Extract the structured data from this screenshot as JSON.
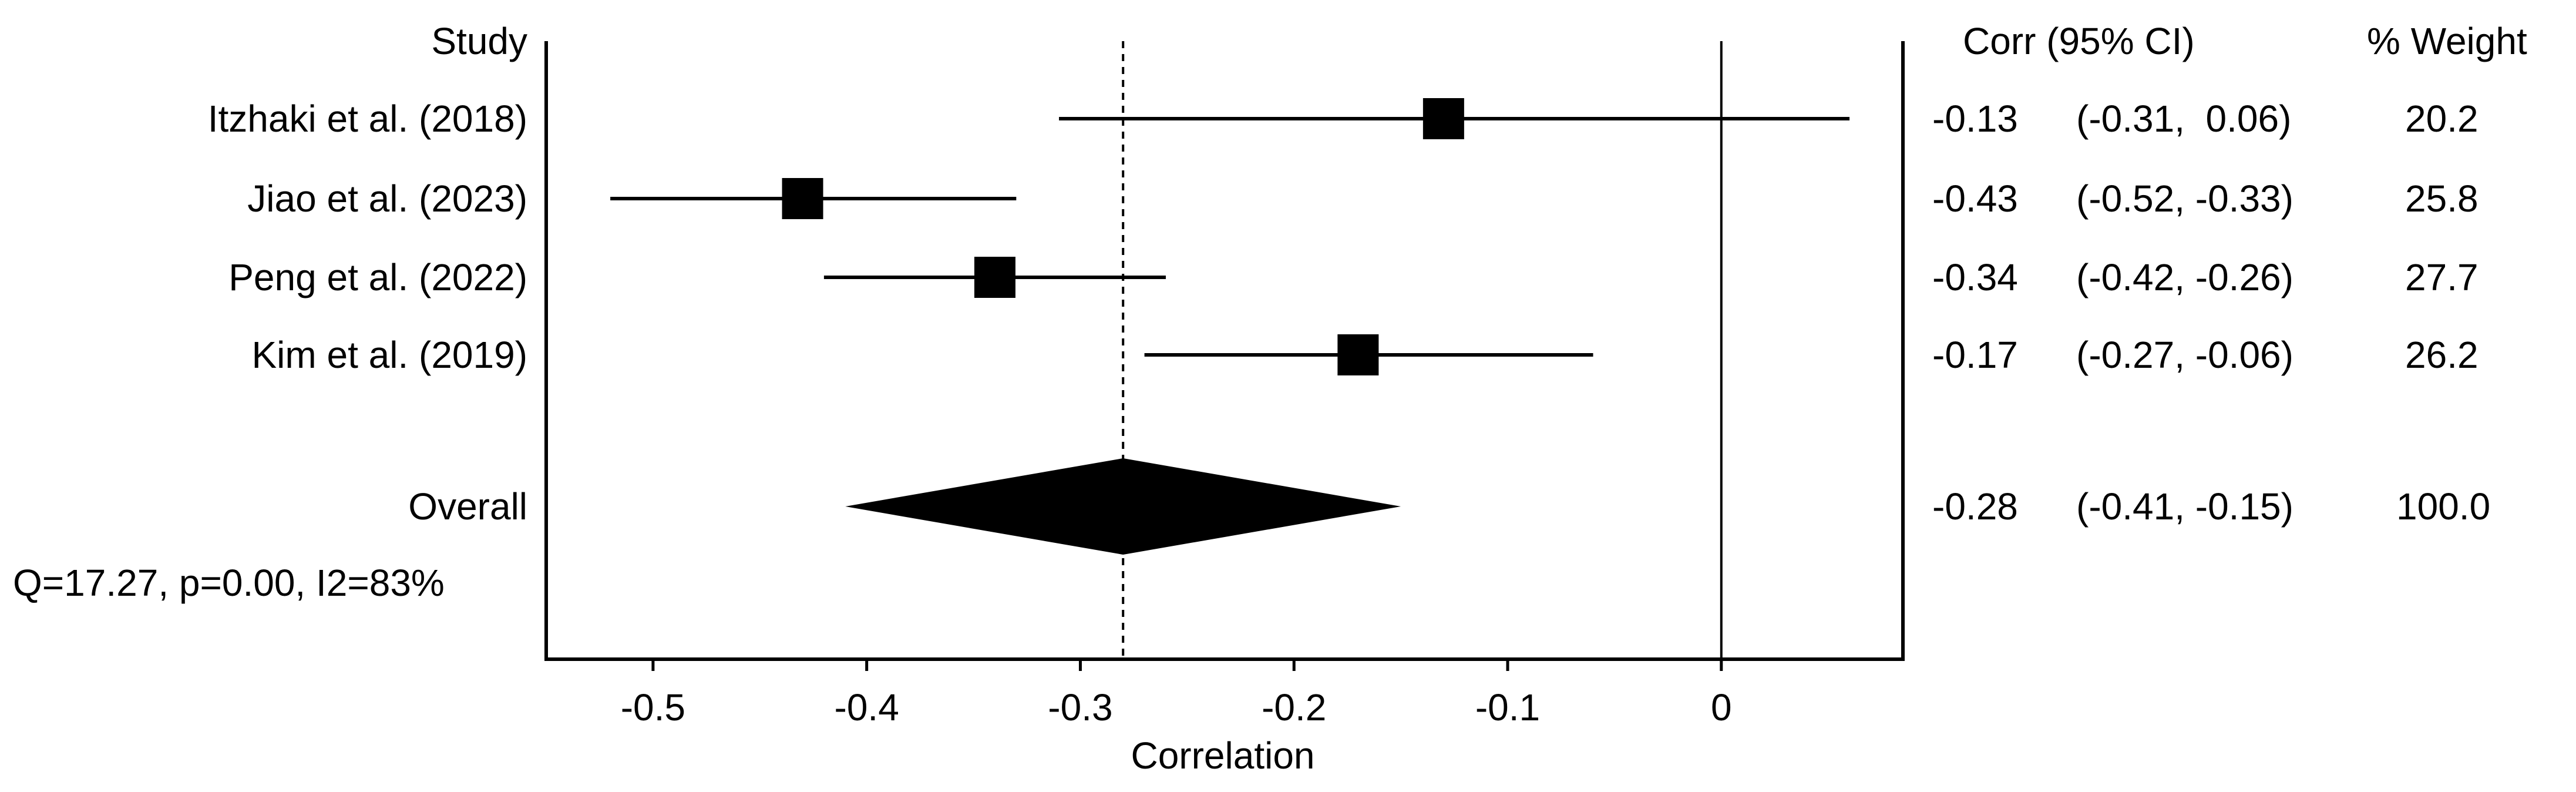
{
  "chart_data": {
    "type": "forest",
    "xlabel": "Correlation",
    "xlim": [
      -0.55,
      0.085
    ],
    "xticks": [
      -0.5,
      -0.4,
      -0.3,
      -0.2,
      -0.1,
      0
    ],
    "xtick_labels": [
      "-0.5",
      "-0.4",
      "-0.3",
      "-0.2",
      "-0.1",
      "0"
    ],
    "headers": {
      "study": "Study",
      "corr_ci": "Corr (95% CI)",
      "weight": "% Weight"
    },
    "studies": [
      {
        "label": "Itzhaki et al. (2018)",
        "corr": -0.13,
        "lower": -0.31,
        "upper": 0.06,
        "weight": 20.2,
        "corr_text": "-0.13",
        "ci_text": "(-0.31,  0.06)",
        "weight_text": "20.2"
      },
      {
        "label": "Jiao et al. (2023)",
        "corr": -0.43,
        "lower": -0.52,
        "upper": -0.33,
        "weight": 25.8,
        "corr_text": "-0.43",
        "ci_text": "(-0.52, -0.33)",
        "weight_text": "25.8"
      },
      {
        "label": "Peng et al. (2022)",
        "corr": -0.34,
        "lower": -0.42,
        "upper": -0.26,
        "weight": 27.7,
        "corr_text": "-0.34",
        "ci_text": "(-0.42, -0.26)",
        "weight_text": "27.7"
      },
      {
        "label": "Kim et al. (2019)",
        "corr": -0.17,
        "lower": -0.27,
        "upper": -0.06,
        "weight": 26.2,
        "corr_text": "-0.17",
        "ci_text": "(-0.27, -0.06)",
        "weight_text": "26.2"
      }
    ],
    "overall": {
      "label": "Overall",
      "corr": -0.28,
      "lower": -0.41,
      "upper": -0.15,
      "weight": 100.0,
      "corr_text": "-0.28",
      "ci_text": "(-0.41, -0.15)",
      "weight_text": "100.0"
    },
    "heterogeneity": "Q=17.27, p=0.00, I2=83%",
    "reference_lines": {
      "null": 0,
      "overall_dashed": -0.28
    }
  }
}
